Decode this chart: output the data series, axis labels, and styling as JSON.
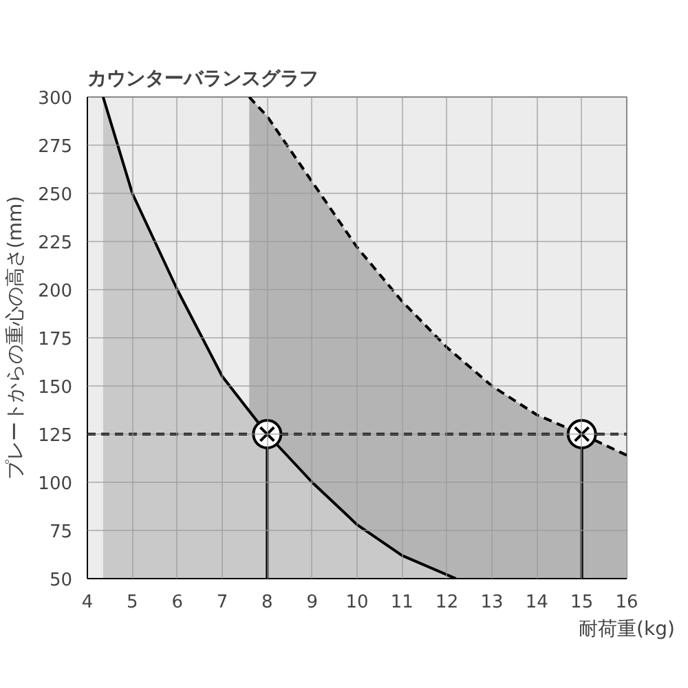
{
  "chart_data": {
    "type": "area",
    "title": "カウンターバランスグラフ",
    "xlabel": "耐荷重(kg)",
    "ylabel": "プレートからの重心の高さ(mm)",
    "xlim": [
      4,
      16
    ],
    "ylim": [
      50,
      300
    ],
    "xticks": [
      4,
      5,
      6,
      7,
      8,
      9,
      10,
      11,
      12,
      13,
      14,
      15,
      16
    ],
    "yticks": [
      50,
      75,
      100,
      125,
      150,
      175,
      200,
      225,
      250,
      275,
      300
    ],
    "grid": true,
    "series": [
      {
        "color": "#b4b4b4",
        "line_style": "dashed",
        "x": [
          7.6,
          8,
          9,
          10,
          11,
          12,
          13,
          14,
          15,
          16
        ],
        "values": [
          300,
          290,
          256,
          222,
          194,
          170,
          150,
          135,
          125,
          114
        ]
      },
      {
        "color": "#c9c9c9",
        "line_style": "solid",
        "x": [
          4.35,
          5,
          6,
          7,
          8,
          9,
          10,
          11,
          12.2
        ],
        "values": [
          300,
          250,
          200,
          155,
          125,
          100,
          78,
          62,
          50
        ]
      },
      {
        "type": "lollipop",
        "color": "#000000",
        "marker": "circle",
        "x": [
          8,
          15
        ],
        "values": [
          125,
          125
        ]
      }
    ],
    "ref_lines": [
      {
        "axis": "y",
        "value": 125,
        "line_style": "dashed",
        "color": "#000000"
      }
    ]
  }
}
